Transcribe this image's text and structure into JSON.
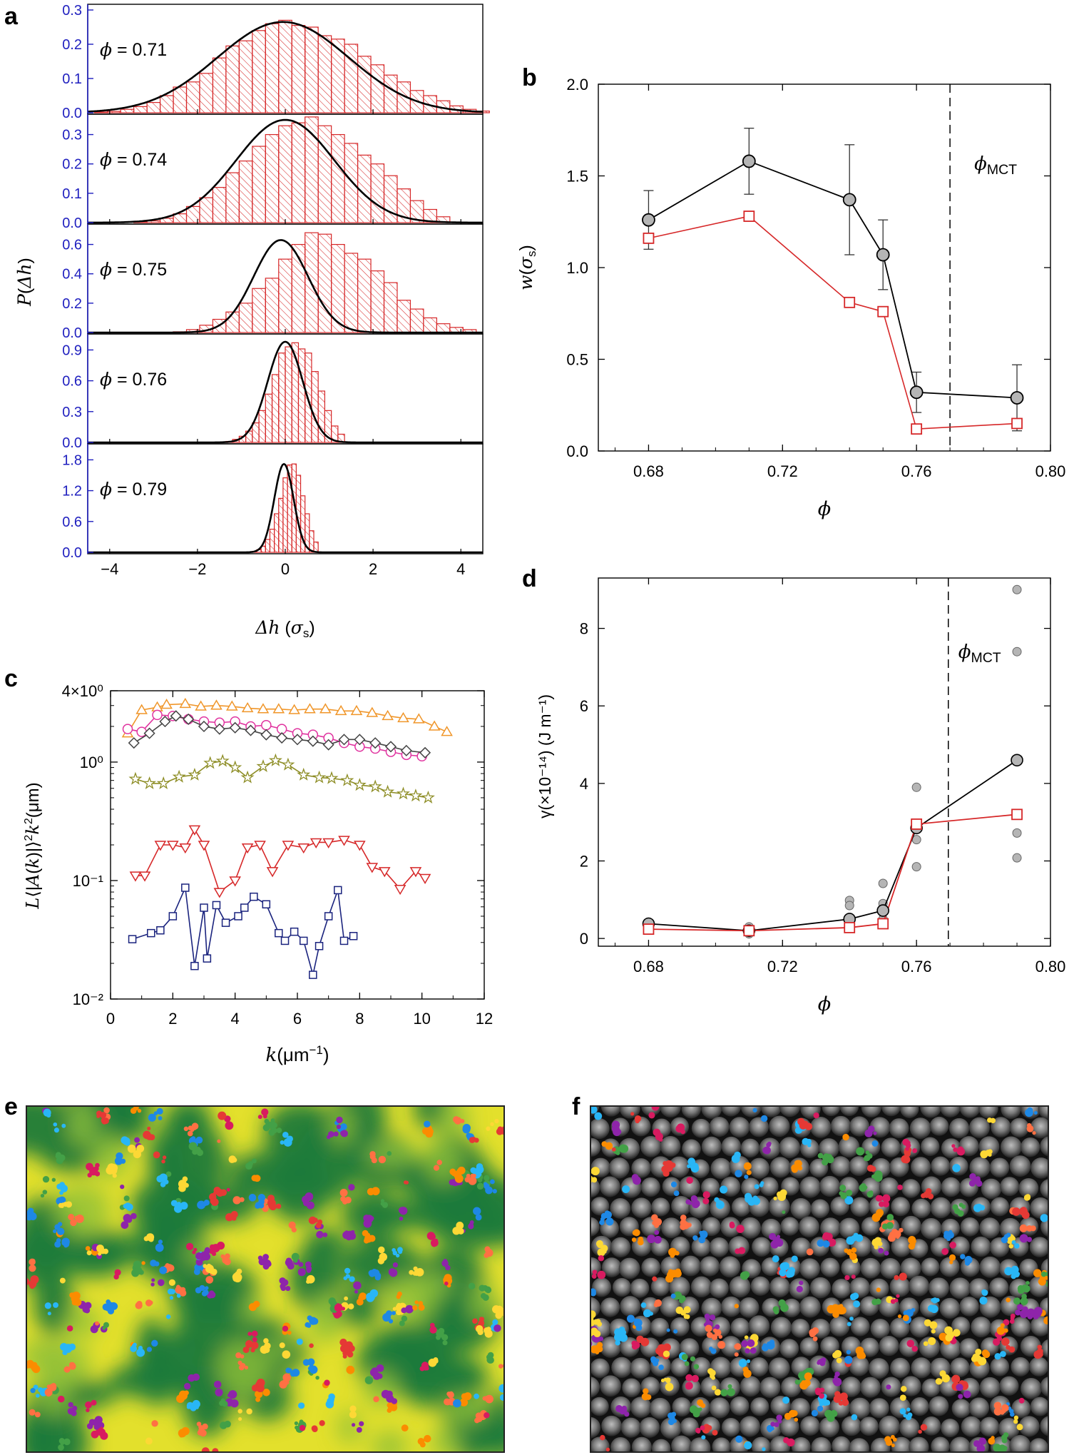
{
  "panel_labels": {
    "a": "a",
    "b": "b",
    "c": "c",
    "d": "d",
    "e": "e",
    "f": "f"
  },
  "colors": {
    "hist": "#d62728",
    "fit": "#000000",
    "axis_blue": "#1f1fbf",
    "grey_marker": "#b5b5b5",
    "red_line": "#d62728"
  },
  "chart_data": [
    {
      "panel": "a",
      "type": "bar",
      "xlabel": "Δh (σs)",
      "ylabel": "P(Δh)",
      "xlim": [
        -4.5,
        4.5
      ],
      "xticks": [
        -4,
        -2,
        0,
        2,
        4
      ],
      "bin_width": 0.3,
      "subplots": [
        {
          "label": "ϕ = 0.71",
          "ylim": [
            0,
            0.3
          ],
          "yticks": [
            "0.0",
            "0.1",
            "0.2",
            "0.3"
          ],
          "gauss": {
            "amp": 0.265,
            "mu": -0.05,
            "sigma": 1.5
          },
          "bin_start": -4.35,
          "values": [
            0.002,
            0.004,
            0.01,
            0.018,
            0.03,
            0.05,
            0.075,
            0.09,
            0.115,
            0.16,
            0.195,
            0.21,
            0.24,
            0.26,
            0.27,
            0.255,
            0.25,
            0.225,
            0.215,
            0.2,
            0.165,
            0.14,
            0.11,
            0.09,
            0.065,
            0.05,
            0.035,
            0.02,
            0.01,
            0.005
          ]
        },
        {
          "label": "ϕ = 0.74",
          "ylim": [
            0,
            0.35
          ],
          "yticks": [
            "0.0",
            "0.1",
            "0.2",
            "0.3"
          ],
          "gauss": {
            "amp": 0.35,
            "mu": 0.0,
            "sigma": 1.12
          },
          "bin_start": -3.45,
          "values": [
            0.003,
            0.006,
            0.015,
            0.03,
            0.055,
            0.085,
            0.12,
            0.17,
            0.21,
            0.26,
            0.3,
            0.33,
            0.34,
            0.36,
            0.33,
            0.3,
            0.27,
            0.23,
            0.2,
            0.16,
            0.115,
            0.075,
            0.045,
            0.02
          ]
        },
        {
          "label": "ϕ = 0.75",
          "ylim": [
            0,
            0.7
          ],
          "yticks": [
            "0.0",
            "0.2",
            "0.4",
            "0.6"
          ],
          "gauss": {
            "amp": 0.63,
            "mu": -0.1,
            "sigma": 0.62
          },
          "bin_start": -2.55,
          "values": [
            0.005,
            0.02,
            0.05,
            0.09,
            0.14,
            0.2,
            0.3,
            0.37,
            0.5,
            0.6,
            0.68,
            0.67,
            0.6,
            0.54,
            0.5,
            0.42,
            0.34,
            0.22,
            0.16,
            0.1,
            0.06,
            0.035,
            0.02
          ]
        },
        {
          "label": "ϕ = 0.76",
          "ylim": [
            0,
            1.0
          ],
          "yticks": [
            "0.0",
            "0.3",
            "0.6",
            "0.9"
          ],
          "gauss": {
            "amp": 0.98,
            "mu": 0.0,
            "sigma": 0.4
          },
          "bin_start": -1.35,
          "bin_width": 0.15,
          "values": [
            0.01,
            0.03,
            0.06,
            0.11,
            0.19,
            0.31,
            0.47,
            0.66,
            0.87,
            0.93,
            0.97,
            0.91,
            0.87,
            0.69,
            0.5,
            0.31,
            0.16,
            0.08
          ]
        },
        {
          "label": "ϕ = 0.79",
          "ylim": [
            0,
            2.0
          ],
          "yticks": [
            "0.0",
            "0.6",
            "1.2",
            "1.8"
          ],
          "gauss": {
            "amp": 1.72,
            "mu": -0.03,
            "sigma": 0.22
          },
          "bin_start": -0.75,
          "bin_width": 0.1,
          "values": [
            0.02,
            0.05,
            0.12,
            0.25,
            0.45,
            0.75,
            1.05,
            1.45,
            1.7,
            1.72,
            1.5,
            1.1,
            0.75,
            0.42,
            0.2
          ]
        }
      ]
    },
    {
      "panel": "b",
      "type": "line",
      "xlabel": "ϕ",
      "ylabel": "w(σs)",
      "xlim": [
        0.665,
        0.8
      ],
      "ylim": [
        0.0,
        2.0
      ],
      "xticks": [
        "0.68",
        "0.72",
        "0.76",
        "0.80"
      ],
      "yticks": [
        "0.0",
        "0.5",
        "1.0",
        "1.5",
        "2.0"
      ],
      "vline": {
        "x": 0.77,
        "label": "ϕMCT"
      },
      "series": [
        {
          "name": "black circles",
          "x": [
            0.68,
            0.71,
            0.74,
            0.75,
            0.76,
            0.79
          ],
          "y": [
            1.26,
            1.58,
            1.37,
            1.07,
            0.32,
            0.29
          ],
          "err": [
            0.16,
            0.18,
            0.3,
            0.19,
            0.11,
            0.18
          ]
        },
        {
          "name": "red squares",
          "x": [
            0.68,
            0.71,
            0.74,
            0.75,
            0.76,
            0.79
          ],
          "y": [
            1.16,
            1.28,
            0.81,
            0.76,
            0.12,
            0.15
          ]
        }
      ]
    },
    {
      "panel": "c",
      "type": "line",
      "xlabel": "k(μm⁻¹)",
      "ylabel": "L⟨|A(k)|⟩²k²(μm)",
      "xlim": [
        0,
        12
      ],
      "ylim_log": [
        -2,
        0.602
      ],
      "xticks": [
        "0",
        "2",
        "4",
        "6",
        "8",
        "10",
        "12"
      ],
      "yticks": [
        "10⁻²",
        "10⁻¹",
        "10⁰",
        "4×10⁰"
      ],
      "series": [
        {
          "name": "orange triangles",
          "marker": "tri-up",
          "color": "#f0962a",
          "x": [
            0.55,
            1.0,
            1.5,
            1.8,
            2.4,
            2.9,
            3.4,
            3.9,
            4.4,
            4.9,
            5.4,
            5.9,
            6.4,
            6.9,
            7.4,
            7.9,
            8.4,
            8.9,
            9.4,
            9.9,
            10.4,
            10.8
          ],
          "y": [
            1.75,
            2.75,
            2.9,
            3.05,
            3.1,
            2.95,
            3.0,
            2.95,
            2.85,
            2.8,
            2.8,
            2.75,
            2.8,
            2.8,
            2.7,
            2.7,
            2.6,
            2.45,
            2.35,
            2.3,
            2.0,
            1.8
          ]
        },
        {
          "name": "magenta circles",
          "marker": "circle",
          "color": "#e0339f",
          "x": [
            0.55,
            1.0,
            1.5,
            2.0,
            2.5,
            3.0,
            3.5,
            4.0,
            4.5,
            5.0,
            5.5,
            6.0,
            6.5,
            7.0,
            7.5,
            8.0,
            8.5,
            9.0,
            9.5,
            10.0
          ],
          "y": [
            1.9,
            1.8,
            2.5,
            2.45,
            2.3,
            2.2,
            2.15,
            2.2,
            2.0,
            2.05,
            1.9,
            1.75,
            1.7,
            1.6,
            1.45,
            1.35,
            1.3,
            1.22,
            1.15,
            1.12
          ]
        },
        {
          "name": "black diamonds",
          "marker": "diamond",
          "color": "#444444",
          "x": [
            0.75,
            1.25,
            1.75,
            2.1,
            2.5,
            3.0,
            3.5,
            4.0,
            4.5,
            5.0,
            5.5,
            6.0,
            6.5,
            7.0,
            7.5,
            8.0,
            8.5,
            9.0,
            9.5,
            10.1
          ],
          "y": [
            1.45,
            1.75,
            2.2,
            2.45,
            2.3,
            2.0,
            1.9,
            1.95,
            1.85,
            1.7,
            1.6,
            1.55,
            1.5,
            1.4,
            1.55,
            1.55,
            1.45,
            1.35,
            1.25,
            1.2
          ]
        },
        {
          "name": "olive stars",
          "marker": "star",
          "color": "#8d8d25",
          "x": [
            0.8,
            1.25,
            1.7,
            2.2,
            2.7,
            3.2,
            3.6,
            4.0,
            4.4,
            4.9,
            5.3,
            5.7,
            6.2,
            6.7,
            7.1,
            7.6,
            8.0,
            8.5,
            8.9,
            9.4,
            9.8,
            10.2
          ],
          "y": [
            0.72,
            0.66,
            0.66,
            0.75,
            0.78,
            0.98,
            1.02,
            0.9,
            0.74,
            0.92,
            1.03,
            0.95,
            0.78,
            0.74,
            0.73,
            0.7,
            0.64,
            0.62,
            0.56,
            0.54,
            0.52,
            0.5
          ]
        },
        {
          "name": "red triangles",
          "marker": "tri-down",
          "color": "#d62728",
          "x": [
            0.8,
            1.1,
            1.6,
            2.0,
            2.4,
            2.7,
            3.0,
            3.5,
            4.0,
            4.4,
            4.8,
            5.2,
            5.7,
            6.2,
            6.6,
            7.0,
            7.5,
            8.0,
            8.4,
            8.8,
            9.3,
            9.8,
            10.1
          ],
          "y": [
            0.11,
            0.11,
            0.2,
            0.2,
            0.19,
            0.27,
            0.2,
            0.08,
            0.1,
            0.19,
            0.2,
            0.12,
            0.2,
            0.19,
            0.21,
            0.21,
            0.22,
            0.2,
            0.13,
            0.12,
            0.085,
            0.12,
            0.105
          ]
        },
        {
          "name": "navy squares",
          "marker": "square",
          "color": "#1a237e",
          "x": [
            0.7,
            1.3,
            1.6,
            2.0,
            2.4,
            2.7,
            3.0,
            3.1,
            3.4,
            3.7,
            4.1,
            4.3,
            4.6,
            5.0,
            5.4,
            5.6,
            5.9,
            6.2,
            6.5,
            6.7,
            7.0,
            7.3,
            7.5,
            7.8
          ],
          "y": [
            0.032,
            0.036,
            0.038,
            0.05,
            0.087,
            0.019,
            0.059,
            0.022,
            0.062,
            0.044,
            0.05,
            0.059,
            0.073,
            0.063,
            0.036,
            0.031,
            0.037,
            0.031,
            0.016,
            0.028,
            0.05,
            0.083,
            0.031,
            0.034
          ]
        }
      ]
    },
    {
      "panel": "d",
      "type": "line",
      "xlabel": "ϕ",
      "ylabel": "γ(×10⁻¹⁴) (J m⁻¹)",
      "xlim": [
        0.665,
        0.8
      ],
      "ylim": [
        -0.2,
        9.3
      ],
      "xticks": [
        "0.68",
        "0.72",
        "0.76",
        "0.80"
      ],
      "yticks": [
        "0",
        "2",
        "4",
        "6",
        "8"
      ],
      "vline": {
        "x": 0.7695,
        "label": "ϕMCT"
      },
      "series": [
        {
          "name": "black circles",
          "x": [
            0.68,
            0.71,
            0.74,
            0.75,
            0.76,
            0.79
          ],
          "y": [
            0.38,
            0.2,
            0.5,
            0.72,
            2.85,
            4.6
          ]
        },
        {
          "name": "red squares",
          "x": [
            0.68,
            0.71,
            0.74,
            0.75,
            0.76,
            0.79
          ],
          "y": [
            0.24,
            0.2,
            0.28,
            0.38,
            2.95,
            3.2
          ]
        },
        {
          "name": "grey scatter",
          "x": [
            0.68,
            0.68,
            0.71,
            0.71,
            0.74,
            0.74,
            0.74,
            0.75,
            0.75,
            0.75,
            0.76,
            0.76,
            0.76,
            0.79,
            0.79,
            0.79,
            0.79,
            0.79
          ],
          "y": [
            0.42,
            0.32,
            0.3,
            0.12,
            0.98,
            0.85,
            0.3,
            1.42,
            0.9,
            0.5,
            3.9,
            2.55,
            1.85,
            9.0,
            7.4,
            2.72,
            2.08,
            3.2
          ]
        }
      ]
    }
  ],
  "panel_e": {
    "description_free": true
  },
  "panel_f": {
    "description_free": true
  }
}
